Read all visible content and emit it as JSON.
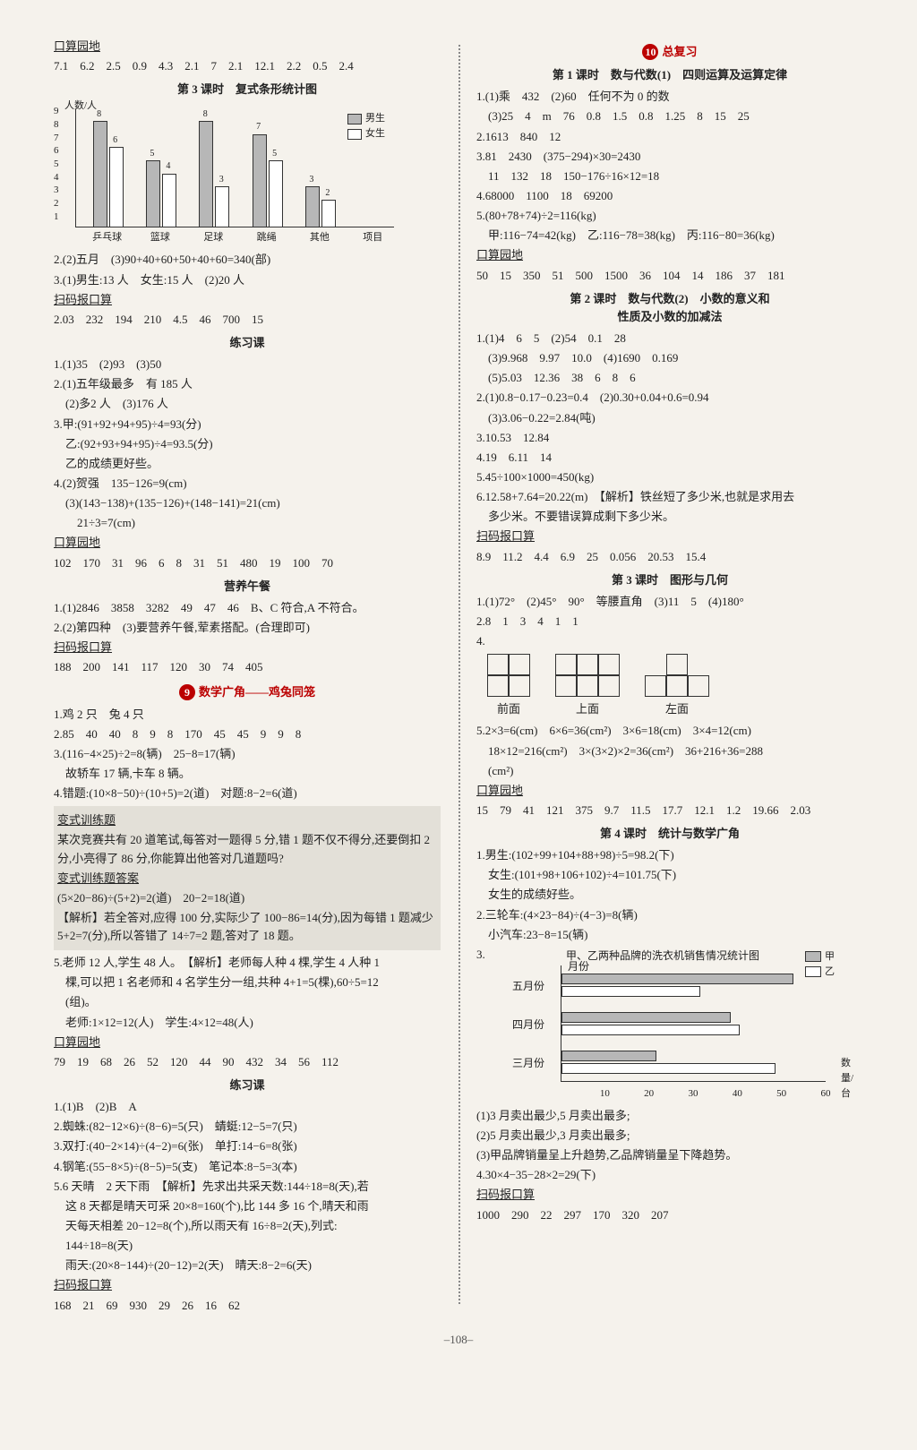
{
  "page_number": "–108–",
  "left": {
    "kousuan1_title": "口算园地",
    "kousuan1_vals": "7.1　6.2　2.5　0.9　4.3　2.1　7　2.1　12.1　2.2　0.5　2.4",
    "lesson3_title": "第 3 课时　复式条形统计图",
    "chart1": {
      "y_axis_unit": "人数/人",
      "yticks": [
        1,
        2,
        3,
        4,
        5,
        6,
        7,
        8,
        9
      ],
      "categories": [
        "乒乓球",
        "篮球",
        "足球",
        "跳绳",
        "其他",
        "项目"
      ],
      "boys": [
        8,
        5,
        8,
        7,
        3
      ],
      "girls": [
        6,
        4,
        3,
        5,
        2
      ],
      "legend_boy": "男生",
      "legend_girl": "女生",
      "bar_boy_color": "#b7b7b7",
      "bar_girl_color": "#ffffff",
      "border_color": "#333333",
      "max_y": 9
    },
    "l2": "2.(2)五月　(3)90+40+60+50+40+60=340(部)",
    "l3": "3.(1)男生:13 人　女生:15 人　(2)20 人",
    "smbks1_title": "扫码报口算",
    "smbks1_vals": "2.03　232　194　210　4.5　46　700　15",
    "lianxi1_title": "练习课",
    "lx_1": "1.(1)35　(2)93　(3)50",
    "lx_2a": "2.(1)五年级最多　有 185 人",
    "lx_2b": "　(2)多2 人　(3)176 人",
    "lx_3a": "3.甲:(91+92+94+95)÷4=93(分)",
    "lx_3b": "　乙:(92+93+94+95)÷4=93.5(分)",
    "lx_3c": "　乙的成绩更好些。",
    "lx_4a": "4.(2)贺强　135−126=9(cm)",
    "lx_4b": "　(3)(143−138)+(135−126)+(148−141)=21(cm)",
    "lx_4c": "　　21÷3=7(cm)",
    "kousuan2_title": "口算园地",
    "kousuan2_vals": "102　170　31　96　6　8　31　51　480　19　100　70",
    "yywc_title": "营养午餐",
    "yy_1": "1.(1)2846　3858　3282　49　47　46　B、C 符合,A 不符合。",
    "yy_2": "2.(2)第四种　(3)要营养午餐,荤素搭配。(合理即可)",
    "smbks2_title": "扫码报口算",
    "smbks2_vals": "188　200　141　117　120　30　74　405",
    "unit9_num": "9",
    "unit9_title": "数学广角——鸡兔同笼",
    "u9_1": "1.鸡 2 只　兔 4 只",
    "u9_2": "2.85　40　40　8　9　8　170　45　45　9　9　8",
    "u9_3a": "3.(116−4×25)÷2=8(辆)　25−8=17(辆)",
    "u9_3b": "　故轿车 17 辆,卡车 8 辆。",
    "u9_4": "4.错题:(10×8−50)÷(10+5)=2(道)　对题:8−2=6(道)",
    "bst_title": "变式训练题",
    "bst_body": "某次竞赛共有 20 道笔试,每答对一题得 5 分,错 1 题不仅不得分,还要倒扣 2 分,小亮得了 86 分,你能算出他答对几道题吗?",
    "bsa_title": "变式训练题答案",
    "bsa_1": "(5×20−86)÷(5+2)=2(道)　20−2=18(道)",
    "bsa_2": "【解析】若全答对,应得 100 分,实际少了 100−86=14(分),因为每错 1 题减少 5+2=7(分),所以答错了 14÷7=2 题,答对了 18 题。",
    "u9_5a": "5.老师 12 人,学生 48 人。　【解析】老师每人种 4 棵,学生 4 人种 1",
    "u9_5b": "　棵,可以把 1 名老师和 4 名学生分一组,共种 4+1=5(棵),60÷5=12",
    "u9_5c": "　(组)。",
    "u9_5d": "　老师:1×12=12(人)　学生:4×12=48(人)",
    "kousuan3_title": "口算园地",
    "kousuan3_vals": "79　19　68　26　52　120　44　90　432　34　56　112",
    "lianxi2_title": "练习课",
    "lx2_1": "1.(1)B　(2)B　A",
    "lx2_2": "2.蜘蛛:(82−12×6)÷(8−6)=5(只)　蜻蜓:12−5=7(只)",
    "lx2_3": "3.双打:(40−2×14)÷(4−2)=6(张)　单打:14−6=8(张)",
    "lx2_4": "4.钢笔:(55−8×5)÷(8−5)=5(支)　笔记本:8−5=3(本)",
    "lx2_5a": "5.6 天晴　2 天下雨　【解析】先求出共采天数:144÷18=8(天),若",
    "lx2_5b": "　这 8 天都是晴天可采 20×8=160(个),比 144 多 16 个,晴天和雨",
    "lx2_5c": "　天每天相差 20−12=8(个),所以雨天有 16÷8=2(天),列式:",
    "lx2_5d": "　144÷18=8(天)",
    "lx2_5e": "　雨天:(20×8−144)÷(20−12)=2(天)　晴天:8−2=6(天)",
    "smbks3_title": "扫码报口算",
    "smbks3_vals": "168　21　69　930　29　26　16　62"
  },
  "right": {
    "unit10_num": "10",
    "unit10_title": "总复习",
    "r_l1_title": "第 1 课时　数与代数(1)　四则运算及运算定律",
    "r1_1a": "1.(1)乘　432　(2)60　任何不为 0 的数",
    "r1_1b": "　(3)25　4　m　76　0.8　1.5　0.8　1.25　8　15　25",
    "r1_2": "2.1613　840　12",
    "r1_3a": "3.81　2430　(375−294)×30=2430",
    "r1_3b": "　11　132　18　150−176÷16×12=18",
    "r1_4": "4.68000　1100　18　69200",
    "r1_5a": "5.(80+78+74)÷2=116(kg)",
    "r1_5b": "　甲:116−74=42(kg)　乙:116−78=38(kg)　丙:116−80=36(kg)",
    "kousuanR1_title": "口算园地",
    "kousuanR1_vals": "50　15　350　51　500　1500　36　104　14　186　37　181",
    "r_l2_title1": "第 2 课时　数与代数(2)　小数的意义和",
    "r_l2_title2": "性质及小数的加减法",
    "r2_1a": "1.(1)4　6　5　(2)54　0.1　28",
    "r2_1b": "　(3)9.968　9.97　10.0　(4)1690　0.169",
    "r2_1c": "　(5)5.03　12.36　38　6　8　6",
    "r2_2a": "2.(1)0.8−0.17−0.23=0.4　(2)0.30+0.04+0.6=0.94",
    "r2_2b": "　(3)3.06−0.22=2.84(吨)",
    "r2_3": "3.10.53　12.84",
    "r2_4": "4.19　6.11　14",
    "r2_5": "5.45÷100×1000=450(kg)",
    "r2_6a": "6.12.58+7.64=20.22(m)　【解析】铁丝短了多少米,也就是求用去",
    "r2_6b": "　多少米。不要错误算成剩下多少米。",
    "smbksR1_title": "扫码报口算",
    "smbksR1_vals": "8.9　11.2　4.4　6.9　25　0.056　20.53　15.4",
    "r_l3_title": "第 3 课时　图形与几何",
    "r3_1": "1.(1)72°　(2)45°　90°　等腰直角　(3)11　5　(4)180°",
    "r3_2": "2.8　1　3　4　1　1",
    "r3_4_label": "4.",
    "views": {
      "front": "前面",
      "top": "上面",
      "left": "左面"
    },
    "r3_5a": "5.2×3=6(cm)　6×6=36(cm²)　3×6=18(cm)　3×4=12(cm)",
    "r3_5b": "　18×12=216(cm²)　3×(3×2)×2=36(cm²)　36+216+36=288",
    "r3_5c": "　(cm²)",
    "kousuanR2_title": "口算园地",
    "kousuanR2_vals": "15　79　41　121　375　9.7　11.5　17.7　12.1　1.2　19.66　2.03",
    "r_l4_title": "第 4 课时　统计与数学广角",
    "r4_1a": "1.男生:(102+99+104+88+98)÷5=98.2(下)",
    "r4_1b": "　女生:(101+98+106+102)÷4=101.75(下)",
    "r4_1c": "　女生的成绩好些。",
    "r4_2a": "2.三轮车:(4×23−84)÷(4−3)=8(辆)",
    "r4_2b": "　小汽车:23−8=15(辆)",
    "r4_3_label": "3.",
    "hchart": {
      "title": "甲、乙两种品牌的洗衣机销售情况统计图",
      "y_unit": "月份",
      "categories": [
        "五月份",
        "四月份",
        "三月份"
      ],
      "series_a_label": "甲",
      "series_b_label": "乙",
      "a_values": [
        52,
        38,
        21
      ],
      "b_values": [
        31,
        40,
        48
      ],
      "xticks": [
        10,
        20,
        30,
        40,
        50,
        60
      ],
      "x_unit": "数量/台",
      "a_color": "#b7b7b7",
      "b_color": "#ffffff",
      "max_x": 60
    },
    "r4_3a": "(1)3 月卖出最少,5 月卖出最多;",
    "r4_3b": "(2)5 月卖出最少,3 月卖出最多;",
    "r4_3c": "(3)甲品牌销量呈上升趋势,乙品牌销量呈下降趋势。",
    "r4_4": "4.30×4−35−28×2=29(下)",
    "smbksR2_title": "扫码报口算",
    "smbksR2_vals": "1000　290　22　297　170　320　207"
  }
}
